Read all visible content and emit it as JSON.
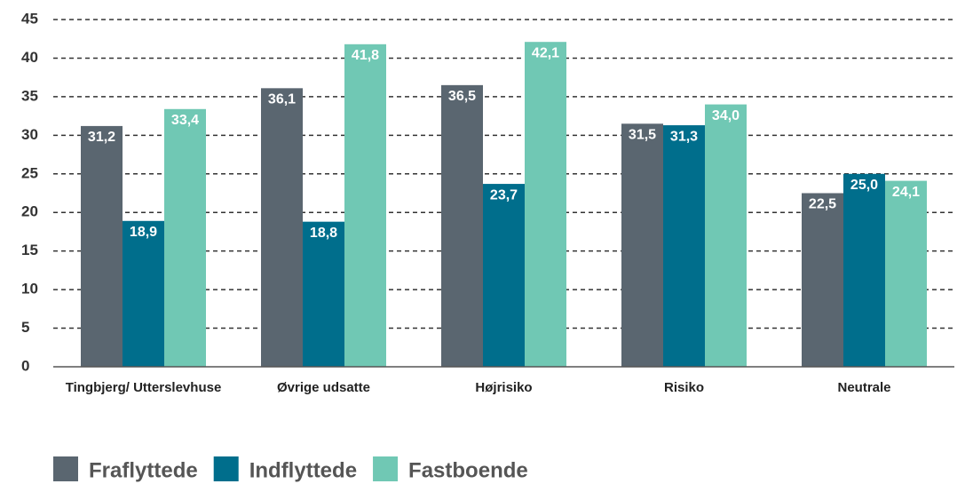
{
  "chart_data": {
    "type": "bar",
    "categories": [
      "Tingbjerg/ Utterslevhuse",
      "Øvrige udsatte",
      "Højrisiko",
      "Risiko",
      "Neutrale"
    ],
    "series": [
      {
        "name": "Fraflyttede",
        "color": "#5a6670",
        "values": [
          31.2,
          36.1,
          36.5,
          31.5,
          22.5
        ],
        "value_labels": [
          "31,2",
          "36,1",
          "36,5",
          "31,5",
          "22,5"
        ]
      },
      {
        "name": "Indflyttede",
        "color": "#006e8c",
        "values": [
          18.9,
          18.8,
          23.7,
          31.3,
          25.0
        ],
        "value_labels": [
          "18,9",
          "18,8",
          "23,7",
          "31,3",
          "25,0"
        ]
      },
      {
        "name": "Fastboende",
        "color": "#70c8b4",
        "values": [
          33.4,
          41.8,
          42.1,
          34.0,
          24.1
        ],
        "value_labels": [
          "33,4",
          "41,8",
          "42,1",
          "34,0",
          "24,1"
        ]
      }
    ],
    "ylim": [
      0,
      45
    ],
    "yticks": [
      0,
      5,
      10,
      15,
      20,
      25,
      30,
      35,
      40,
      45
    ],
    "grid": true,
    "legend": "bottom-left"
  }
}
